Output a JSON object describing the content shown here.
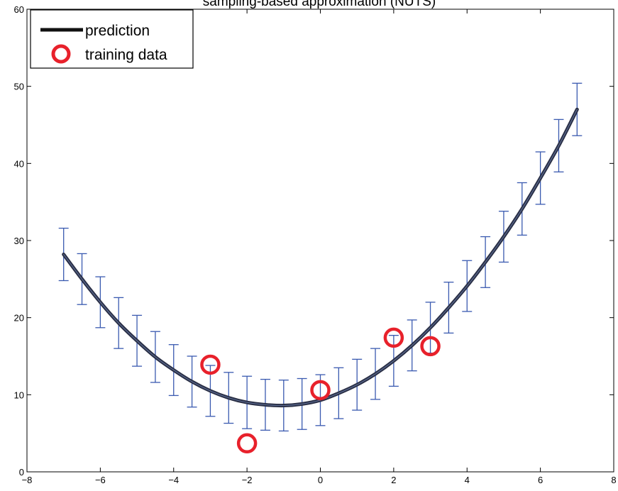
{
  "chart_data": {
    "type": "line",
    "title": "sampling-based approximation (NUTS)",
    "xlim": [
      -8,
      8
    ],
    "ylim": [
      0,
      60
    ],
    "xticks": [
      -8,
      -6,
      -4,
      -2,
      0,
      2,
      4,
      6,
      8
    ],
    "yticks": [
      0,
      10,
      20,
      30,
      40,
      50,
      60
    ],
    "grid": false,
    "legend_position": "top-left",
    "legend": {
      "prediction_label": "prediction",
      "training_label": "training data"
    },
    "colors": {
      "prediction": "#2a2f45",
      "prediction_core": "#5a6a90",
      "error_bars": "#3a5ab0",
      "training": "#e8212b",
      "axes": "#000000"
    },
    "prediction": {
      "name": "prediction",
      "x": [
        -7.0,
        -6.5,
        -6.0,
        -5.5,
        -5.0,
        -4.5,
        -4.0,
        -3.5,
        -3.0,
        -2.5,
        -2.0,
        -1.5,
        -1.0,
        -0.5,
        0.0,
        0.5,
        1.0,
        1.5,
        2.0,
        2.5,
        3.0,
        3.5,
        4.0,
        4.5,
        5.0,
        5.5,
        6.0,
        6.5,
        7.0
      ],
      "y": [
        28.2,
        25.0,
        22.0,
        19.3,
        17.0,
        14.9,
        13.2,
        11.7,
        10.5,
        9.6,
        9.0,
        8.7,
        8.6,
        8.8,
        9.3,
        10.2,
        11.3,
        12.7,
        14.4,
        16.4,
        18.7,
        21.3,
        24.1,
        27.2,
        30.5,
        34.1,
        38.1,
        42.3,
        47.0
      ],
      "error": [
        3.4,
        3.3,
        3.3,
        3.3,
        3.3,
        3.3,
        3.3,
        3.3,
        3.3,
        3.3,
        3.4,
        3.3,
        3.3,
        3.3,
        3.3,
        3.3,
        3.3,
        3.3,
        3.3,
        3.3,
        3.3,
        3.3,
        3.3,
        3.3,
        3.3,
        3.4,
        3.4,
        3.4,
        3.4
      ]
    },
    "training_data": {
      "name": "training data",
      "x": [
        -3,
        -2,
        0,
        2,
        3
      ],
      "y": [
        13.9,
        3.7,
        10.6,
        17.4,
        16.3
      ]
    }
  }
}
